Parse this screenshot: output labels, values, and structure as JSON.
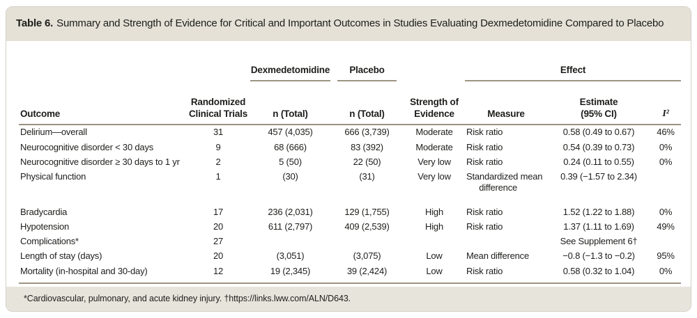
{
  "title": {
    "label": "Table 6.",
    "text": "Summary and Strength of Evidence for Critical and Important Outcomes in Studies Evaluating Dexmedetomidine Compared to Placebo"
  },
  "table": {
    "group_headers": [
      {
        "label": "Dexmedetomidine"
      },
      {
        "label": "Placebo"
      },
      {
        "label": "Effect"
      }
    ],
    "columns": [
      "Outcome",
      "Randomized\nClinical Trials",
      "n (Total)",
      "n (Total)",
      "Strength of\nEvidence",
      "Measure",
      "Estimate\n(95% CI)",
      "I²"
    ],
    "rows": [
      [
        "Delirium—overall",
        "31",
        "457 (4,035)",
        "666 (3,739)",
        "Moderate",
        "Risk ratio",
        "0.58 (0.49 to 0.67)",
        "46%"
      ],
      [
        "Neurocognitive disorder < 30 days",
        "9",
        "68 (666)",
        "83 (392)",
        "Moderate",
        "Risk ratio",
        "0.54 (0.39 to 0.73)",
        "0%"
      ],
      [
        "Neurocognitive disorder ≥ 30 days to 1 yr",
        "2",
        "5 (50)",
        "22 (50)",
        "Very low",
        "Risk ratio",
        "0.24 (0.11 to 0.55)",
        "0%"
      ],
      [
        "Physical function",
        "1",
        "(30)",
        "(31)",
        "Very low",
        "Standardized mean difference",
        "0.39 (−1.57 to 2.34)",
        ""
      ],
      [
        "Bradycardia",
        "17",
        "236 (2,031)",
        "129 (1,755)",
        "High",
        "Risk ratio",
        "1.52 (1.22 to 1.88)",
        "0%"
      ],
      [
        "Hypotension",
        "20",
        "611 (2,797)",
        "409 (2,539)",
        "High",
        "Risk ratio",
        "1.37 (1.11 to 1.69)",
        "49%"
      ],
      [
        "Complications*",
        "27",
        "",
        "",
        "",
        "",
        "See Supplement 6†",
        ""
      ],
      [
        "Length of stay (days)",
        "20",
        "(3,051)",
        "(3,075)",
        "Low",
        "Mean difference",
        "−0.8 (−1.3 to −0.2)",
        "95%"
      ],
      [
        "Mortality (in-hospital and 30-day)",
        "12",
        "19 (2,345)",
        "39 (2,424)",
        "Low",
        "Risk ratio",
        "0.58 (0.32 to 1.04)",
        "0%"
      ]
    ],
    "section_break_after_row": 3
  },
  "footnote": "*Cardiovascular, pulmonary, and acute kidney injury. †https://links.lww.com/ALN/D643.",
  "colors": {
    "title_band": "#e5e1d6",
    "footnote_band": "#e7e4dc",
    "rule": "#9c9383",
    "text": "#1d1d1b",
    "panel_border": "#d2cfc6"
  }
}
